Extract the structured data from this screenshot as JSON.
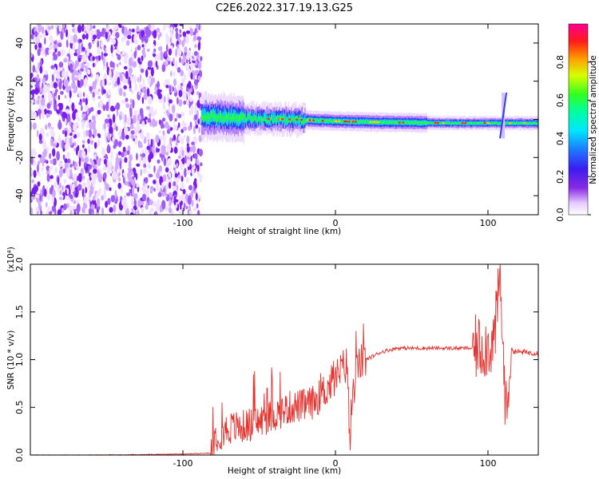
{
  "figure_title": "C2E6.2022.317.19.13.G25",
  "colors": {
    "snr_line": "#e8302c",
    "axis": "#000000",
    "background": "#ffffff"
  },
  "chart_data": [
    {
      "id": "spectrogram",
      "type": "heatmap",
      "title": "",
      "xlabel": "Height of straight line (km)",
      "ylabel": "Frequency (Hz)",
      "xlim": [
        -200,
        133
      ],
      "ylim": [
        -50,
        50
      ],
      "xticks": [
        -100,
        0,
        100
      ],
      "yticks": [
        -40,
        -20,
        0,
        20,
        40
      ],
      "colorbar": {
        "label": "Normalized spectral amplitude",
        "range": [
          0.0,
          1.0
        ],
        "ticks": [
          "0.0",
          "0.2",
          "0.4",
          "0.6",
          "0.8"
        ],
        "colormap": "rainbow (white, violet, blue, cyan, green, yellow, orange, red, magenta)"
      },
      "features": {
        "noise_region_x": [
          -200,
          -88
        ],
        "signal_line_freq_hz": [
          1.5,
          0.5,
          0,
          -1,
          -1.5,
          -2,
          -2
        ],
        "signal_line_x": [
          -88,
          -60,
          -30,
          0,
          30,
          80,
          133
        ],
        "spike_at_x": 110,
        "spike_freq_range": [
          -10,
          14
        ]
      }
    },
    {
      "id": "snr",
      "type": "line",
      "title": "",
      "xlabel": "Height of straight line (km)",
      "ylabel": "SNR (10 * v/v)",
      "scale_note": "(x10⁴)",
      "xlim": [
        -200,
        133
      ],
      "ylim": [
        0.0,
        2.0
      ],
      "xticks": [
        -100,
        0,
        100
      ],
      "yticks": [
        "0.0",
        "0.5",
        "1.0",
        "1.5",
        "2.0"
      ],
      "series": [
        {
          "color": "#e8302c",
          "x": [
            -200,
            -150,
            -100,
            -82,
            -79,
            -70,
            -60,
            -50,
            -40,
            -30,
            -20,
            -15,
            -10,
            0,
            5,
            8,
            9,
            10,
            11,
            15,
            20,
            30,
            40,
            60,
            80,
            90,
            95,
            100,
            104,
            106,
            108,
            110,
            112,
            115,
            120,
            133
          ],
          "y": [
            0.0,
            0.0,
            0.01,
            0.02,
            0.2,
            0.28,
            0.3,
            0.35,
            0.42,
            0.5,
            0.52,
            0.55,
            0.62,
            0.8,
            0.92,
            0.95,
            0.3,
            0.05,
            0.6,
            0.95,
            1.0,
            1.08,
            1.12,
            1.12,
            1.12,
            1.12,
            1.13,
            1.15,
            1.2,
            1.5,
            1.9,
            1.0,
            0.4,
            1.1,
            1.08,
            1.07
          ]
        }
      ]
    }
  ]
}
